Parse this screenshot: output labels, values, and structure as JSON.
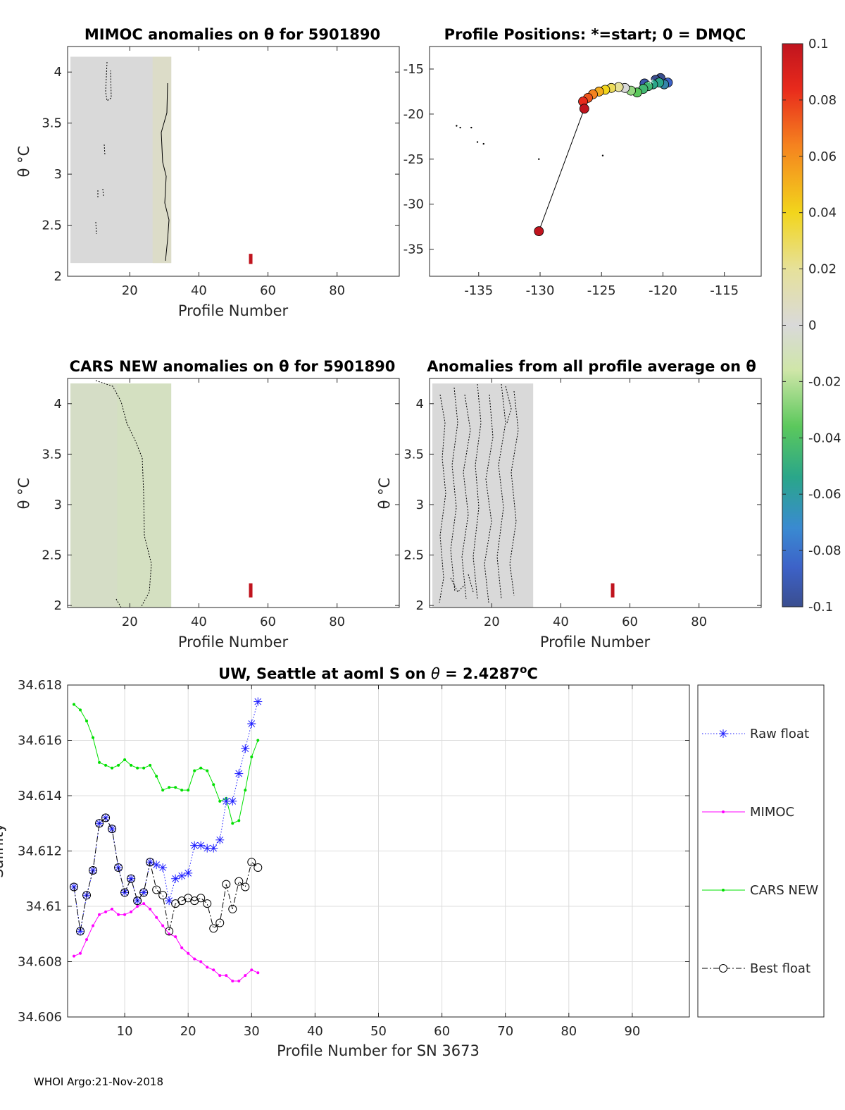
{
  "footer": "WHOI Argo:21-Nov-2018",
  "chart_data": [
    {
      "id": "mimoc",
      "type": "heatmap",
      "title": "MIMOC anomalies on θ  for 5901890",
      "xlabel": "Profile Number",
      "ylabel": "θ °C",
      "xlim": [
        2,
        98
      ],
      "ylim": [
        2,
        4.25
      ],
      "xticks": [
        20,
        40,
        60,
        80
      ],
      "yticks": [
        2,
        2.5,
        3,
        3.5,
        4
      ],
      "ytick_labels": [
        "2",
        "2.5",
        "3",
        "3.5",
        "4"
      ],
      "field_x": [
        2,
        32
      ],
      "field_theta": [
        2.13,
        4.15
      ],
      "field_value": 0.0,
      "marker": {
        "x": 55,
        "theta": [
          2.12,
          2.22
        ]
      }
    },
    {
      "id": "positions",
      "type": "scatter",
      "title": "Profile Positions: *=start; 0 = DMQC",
      "xlim": [
        -139,
        -112
      ],
      "ylim": [
        -38,
        -12.5
      ],
      "xticks": [
        -135,
        -130,
        -125,
        -120,
        -115
      ],
      "yticks": [
        -35,
        -30,
        -25,
        -20,
        -15
      ],
      "dots": [
        [
          -136.8,
          -21.3
        ],
        [
          -136.5,
          -21.5
        ],
        [
          -135.6,
          -21.5
        ],
        [
          -135.1,
          -23.1
        ],
        [
          -134.6,
          -23.3
        ],
        [
          -130.1,
          -25.0
        ],
        [
          -124.9,
          -24.6
        ]
      ],
      "track": [
        [
          -130.1,
          -33.0
        ],
        [
          -126.4,
          -19.4
        ],
        [
          -126.5,
          -18.6
        ],
        [
          -126.1,
          -18.2
        ],
        [
          -125.7,
          -17.8
        ],
        [
          -125.2,
          -17.5
        ],
        [
          -124.7,
          -17.3
        ],
        [
          -124.2,
          -17.1
        ],
        [
          -123.6,
          -17.0
        ],
        [
          -123.1,
          -17.1
        ],
        [
          -122.6,
          -17.4
        ],
        [
          -122.1,
          -17.6
        ],
        [
          -121.6,
          -17.2
        ],
        [
          -121.2,
          -16.9
        ],
        [
          -120.8,
          -16.7
        ],
        [
          -120.3,
          -16.5
        ],
        [
          -119.9,
          -16.7
        ],
        [
          -119.6,
          -16.5
        ],
        [
          -121.5,
          -16.6
        ],
        [
          -120.6,
          -16.2
        ],
        [
          -120.2,
          -16.0
        ]
      ],
      "track_values": [
        0.1,
        0.1,
        0.08,
        0.07,
        0.06,
        0.05,
        0.04,
        0.03,
        0.02,
        0.0,
        -0.03,
        -0.04,
        -0.05,
        -0.05,
        -0.06,
        -0.06,
        -0.07,
        -0.08,
        -0.09,
        -0.1,
        -0.1
      ],
      "start_marker": [
        -121.0,
        -16.5
      ]
    },
    {
      "id": "colorbar",
      "type": "heatmap",
      "range": [
        -0.1,
        0.1
      ],
      "tick_labels": [
        "0.1",
        "0.08",
        "0.06",
        "0.04",
        "0.02",
        "0",
        "-0.02",
        "-0.04",
        "-0.06",
        "-0.08",
        "-0.1"
      ]
    },
    {
      "id": "cars",
      "type": "heatmap",
      "title": "CARS NEW anomalies on θ for 5901890",
      "xlabel": "Profile Number",
      "ylabel": "θ °C",
      "xlim": [
        2,
        98
      ],
      "ylim": [
        1.98,
        4.25
      ],
      "xticks": [
        20,
        40,
        60,
        80
      ],
      "yticks": [
        2,
        2.5,
        3,
        3.5,
        4
      ],
      "ytick_labels": [
        "2",
        "2.5",
        "3",
        "3.5",
        "4"
      ],
      "field_x": [
        2,
        32
      ],
      "field_theta": [
        1.98,
        4.2
      ],
      "field_value": -0.01,
      "marker": {
        "x": 55,
        "theta": [
          2.08,
          2.22
        ]
      }
    },
    {
      "id": "allavg",
      "type": "heatmap",
      "title": "Anomalies from all profile average on θ",
      "xlabel": "Profile Number",
      "ylabel": "θ °C",
      "xlim": [
        2,
        98
      ],
      "ylim": [
        1.98,
        4.25
      ],
      "xticks": [
        20,
        40,
        60,
        80
      ],
      "yticks": [
        2,
        2.5,
        3,
        3.5,
        4
      ],
      "ytick_labels": [
        "2",
        "2.5",
        "3",
        "3.5",
        "4"
      ],
      "field_x": [
        2,
        32
      ],
      "field_theta": [
        1.98,
        4.2
      ],
      "field_value": 0.0,
      "marker": {
        "x": 55,
        "theta": [
          2.08,
          2.22
        ]
      }
    },
    {
      "id": "salinity",
      "type": "line",
      "title": "UW, Seattle at aoml S on θ = 2.4287°C",
      "title_parts": {
        "pre": "UW, Seattle at aoml S on ",
        "theta": "θ",
        "mid": " = 2.4287",
        "sup": "o",
        "post": "C"
      },
      "xlabel": "Profile Number for SN 3673",
      "ylabel": "Salinity",
      "xlim": [
        1,
        99
      ],
      "ylim": [
        34.606,
        34.618
      ],
      "xticks": [
        10,
        20,
        30,
        40,
        50,
        60,
        70,
        80,
        90
      ],
      "yticks": [
        34.606,
        34.608,
        34.61,
        34.612,
        34.614,
        34.616,
        34.618
      ],
      "ytick_labels": [
        "34.606",
        "34.608",
        "34.61",
        "34.612",
        "34.614",
        "34.616",
        "34.618"
      ],
      "x": [
        2,
        3,
        4,
        5,
        6,
        7,
        8,
        9,
        10,
        11,
        12,
        13,
        14,
        15,
        16,
        17,
        18,
        19,
        20,
        21,
        22,
        23,
        24,
        25,
        26,
        27,
        28,
        29,
        30,
        31
      ],
      "series": [
        {
          "name": "Raw float",
          "color": "#1a1aff",
          "style": "dotted",
          "marker": "star",
          "values": [
            34.6107,
            34.6091,
            34.6104,
            34.6113,
            34.613,
            34.6132,
            34.6128,
            34.6114,
            34.6105,
            34.611,
            34.6102,
            34.6105,
            34.6116,
            34.6115,
            34.6114,
            34.6102,
            34.611,
            34.6111,
            34.6112,
            34.6122,
            34.6122,
            34.6121,
            34.6121,
            34.6124,
            34.6138,
            34.6138,
            34.6148,
            34.6157,
            34.6166,
            34.6174
          ]
        },
        {
          "name": "MIMOC",
          "color": "#ff00ff",
          "style": "solid",
          "marker": "dot",
          "values": [
            34.6082,
            34.6083,
            34.6088,
            34.6093,
            34.6097,
            34.6098,
            34.6099,
            34.6097,
            34.6097,
            34.6098,
            34.61,
            34.6101,
            34.6099,
            34.6096,
            34.6093,
            34.609,
            34.6089,
            34.6085,
            34.6083,
            34.6081,
            34.608,
            34.6078,
            34.6077,
            34.6075,
            34.6075,
            34.6073,
            34.6073,
            34.6075,
            34.6077,
            34.6076
          ]
        },
        {
          "name": "CARS NEW",
          "color": "#00e000",
          "style": "solid",
          "marker": "dot",
          "values": [
            34.6173,
            34.6171,
            34.6167,
            34.6161,
            34.6152,
            34.6151,
            34.615,
            34.6151,
            34.6153,
            34.6151,
            34.615,
            34.615,
            34.6151,
            34.6147,
            34.6142,
            34.6143,
            34.6143,
            34.6142,
            34.6142,
            34.6149,
            34.615,
            34.6149,
            34.6144,
            34.6138,
            34.6139,
            34.613,
            34.6131,
            34.6142,
            34.6154,
            34.616
          ]
        },
        {
          "name": "Best float",
          "color": "#000000",
          "style": "dashdot",
          "marker": "circle",
          "values": [
            34.6107,
            34.6091,
            34.6104,
            34.6113,
            34.613,
            34.6132,
            34.6128,
            34.6114,
            34.6105,
            34.611,
            34.6102,
            34.6105,
            34.6116,
            34.6106,
            34.6104,
            34.6091,
            34.6101,
            34.6102,
            34.6103,
            34.6102,
            34.6103,
            34.6101,
            34.6092,
            34.6094,
            34.6108,
            34.6099,
            34.6109,
            34.6107,
            34.6116,
            34.6114
          ]
        }
      ],
      "legend_position": "right"
    }
  ]
}
